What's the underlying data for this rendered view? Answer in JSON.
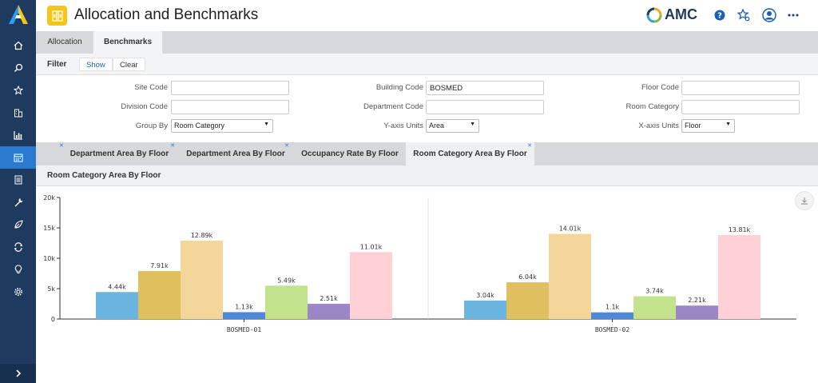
{
  "header": {
    "title": "Allocation and Benchmarks",
    "brand": "AMC"
  },
  "nav_icons": [
    "home-icon",
    "search-icon",
    "star-icon",
    "building-icon",
    "chart-icon",
    "calendar-icon",
    "document-icon",
    "wrench-icon",
    "leaf-icon",
    "sync-icon",
    "bulb-icon",
    "gear-icon"
  ],
  "main_tabs": [
    {
      "label": "Allocation",
      "active": false
    },
    {
      "label": "Benchmarks",
      "active": true
    }
  ],
  "filter": {
    "label": "Filter",
    "show_label": "Show",
    "clear_label": "Clear"
  },
  "form": {
    "site_code_label": "Site Code",
    "site_code_value": "",
    "division_code_label": "Division Code",
    "division_code_value": "",
    "group_by_label": "Group By",
    "group_by_value": "Room Category",
    "building_code_label": "Building Code",
    "building_code_value": "BOSMED",
    "department_code_label": "Department Code",
    "department_code_value": "",
    "y_units_label": "Y-axis Units",
    "y_units_value": "Area",
    "floor_code_label": "Floor Code",
    "floor_code_value": "",
    "room_category_label": "Room Category",
    "room_category_value": "",
    "x_units_label": "X-axis Units",
    "x_units_value": "Floor"
  },
  "chart_tabs": [
    {
      "label": "Department Area By Floor",
      "active": false
    },
    {
      "label": "Department Area By Floor",
      "active": false
    },
    {
      "label": "Occupancy Rate By Floor",
      "active": false
    },
    {
      "label": "Room Category Area By Floor",
      "active": true
    }
  ],
  "panel": {
    "title": "Room Category Area By Floor"
  },
  "colors": {
    "series": [
      "#6cb4e0",
      "#e0bf5f",
      "#f4d59a",
      "#4d88d4",
      "#c2e38c",
      "#9b86c8",
      "#ffd0d6"
    ]
  },
  "chart_data": {
    "type": "bar",
    "categories": [
      "BOSMED-01",
      "BOSMED-02"
    ],
    "series": [
      {
        "values": [
          4440,
          3040
        ],
        "labels": [
          "4.44k",
          "3.04k"
        ]
      },
      {
        "values": [
          7910,
          6040
        ],
        "labels": [
          "7.91k",
          "6.04k"
        ]
      },
      {
        "values": [
          12890,
          14010
        ],
        "labels": [
          "12.89k",
          "14.01k"
        ]
      },
      {
        "values": [
          1130,
          1100
        ],
        "labels": [
          "1.13k",
          "1.1k"
        ]
      },
      {
        "values": [
          5490,
          3740
        ],
        "labels": [
          "5.49k",
          "3.74k"
        ]
      },
      {
        "values": [
          2510,
          2210
        ],
        "labels": [
          "2.51k",
          "2.21k"
        ]
      },
      {
        "values": [
          11010,
          13810
        ],
        "labels": [
          "11.01k",
          "13.81k"
        ]
      }
    ],
    "yticks": [
      "0",
      "5k",
      "10k",
      "15k",
      "20k"
    ],
    "ylim": [
      0,
      20000
    ],
    "grid": false
  }
}
